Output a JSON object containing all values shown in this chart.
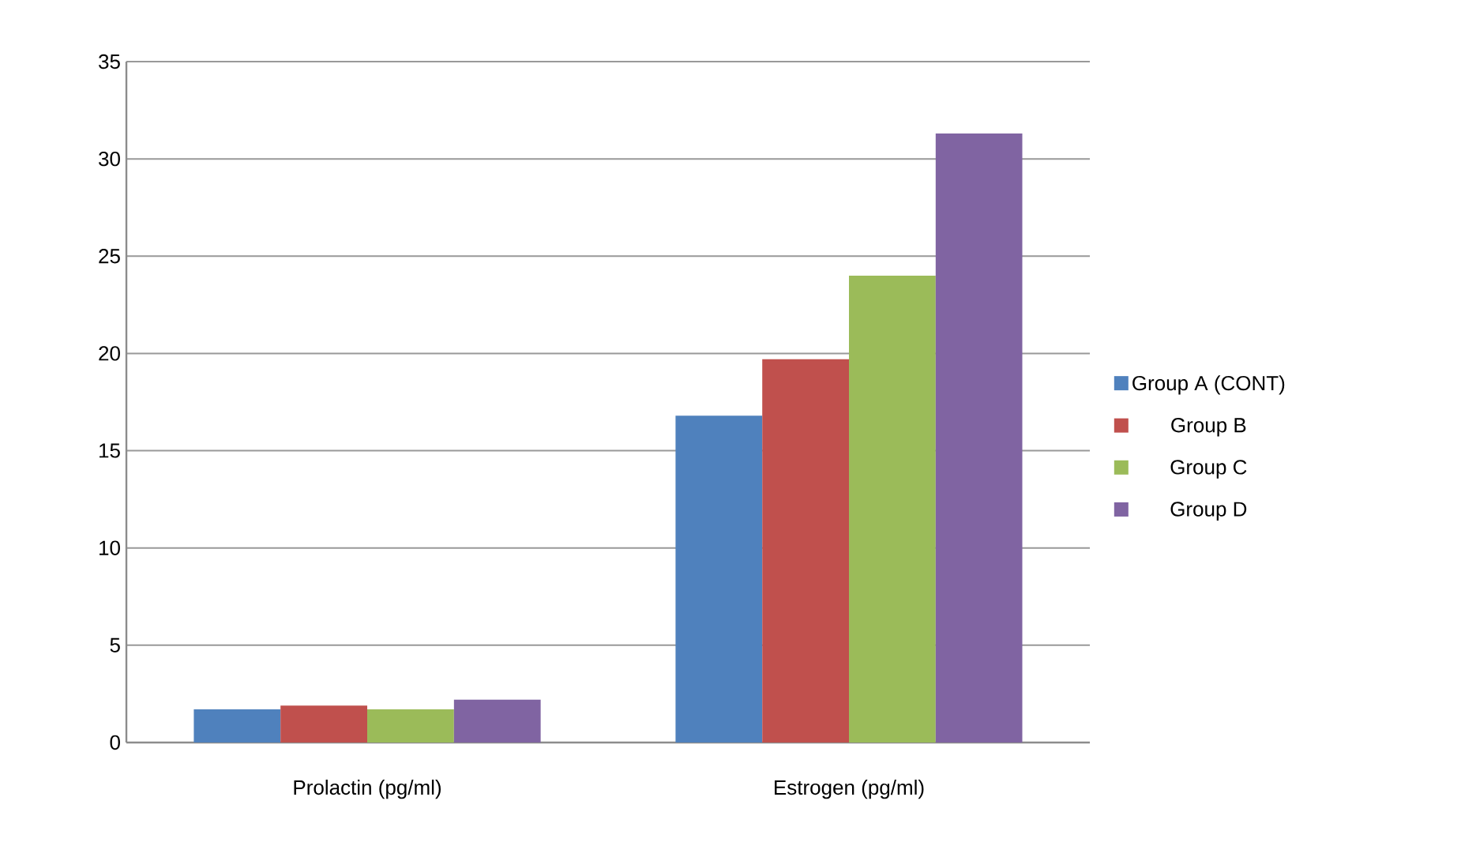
{
  "chart_data": {
    "type": "bar",
    "categories": [
      "Prolactin (pg/ml)",
      "Estrogen (pg/ml)"
    ],
    "series": [
      {
        "name": "Group A (CONT)",
        "color": "#4f81bd",
        "values": [
          1.7,
          16.8
        ]
      },
      {
        "name": "Group B",
        "color": "#c0504d",
        "values": [
          1.9,
          19.7
        ]
      },
      {
        "name": "Group C",
        "color": "#9bbb59",
        "values": [
          1.7,
          24.0
        ]
      },
      {
        "name": "Group D",
        "color": "#8064a2",
        "values": [
          2.2,
          31.3
        ]
      }
    ],
    "ylim": [
      0,
      35
    ],
    "yticks": [
      0,
      5,
      10,
      15,
      20,
      25,
      30,
      35
    ],
    "grid": "y",
    "legend": "right"
  }
}
